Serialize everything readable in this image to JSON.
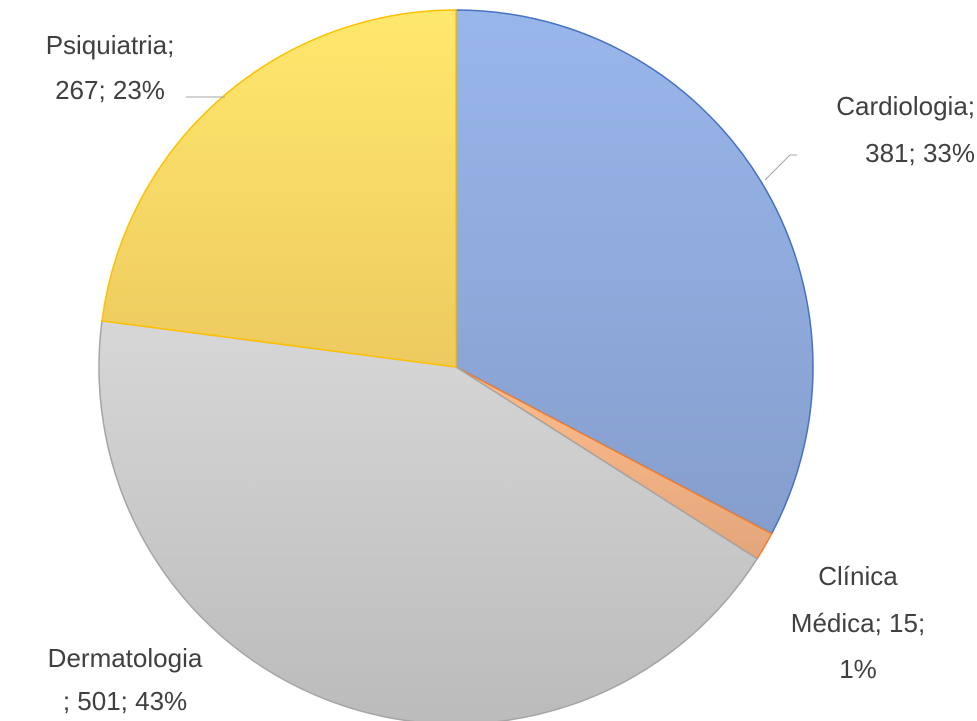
{
  "chart_data": {
    "type": "pie",
    "values": [
      381,
      15,
      501,
      267
    ],
    "value_labels": [
      [
        "Cardiologia;",
        "381; 33%"
      ],
      [
        "Clínica",
        "Médica; 15;",
        "1%"
      ],
      [
        "Dermatologia",
        "; 501; 43%"
      ],
      [
        "Psiquiatria;",
        "267; 23%"
      ]
    ],
    "colors": [
      "#8faadc",
      "#f4b183",
      "#c9c9c9",
      "#ffd966"
    ],
    "edge_colors": [
      "#4472c4",
      "#ed7d31",
      "#a5a5a5",
      "#ffc000"
    ]
  }
}
